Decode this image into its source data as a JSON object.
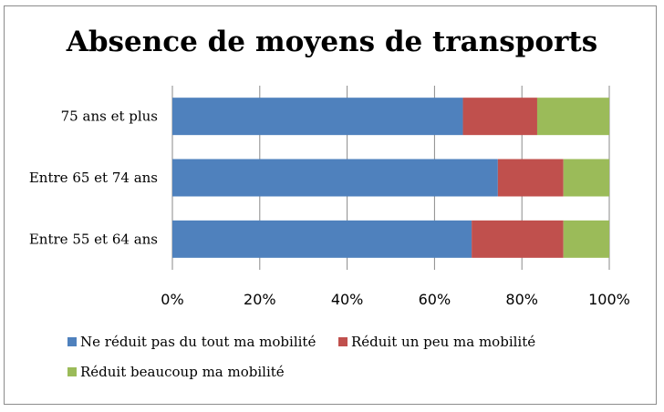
{
  "chart_data": {
    "type": "bar",
    "orientation": "horizontal",
    "stacked": "percent",
    "title": "Absence de moyens de transports",
    "categories": [
      "75 ans et plus",
      "Entre 65 et 74 ans",
      "Entre 55 et 64 ans"
    ],
    "series": [
      {
        "name": "Ne réduit pas du tout ma mobilité",
        "color": "#4f81bd",
        "values": [
          66.5,
          74.5,
          68.5
        ]
      },
      {
        "name": "Réduit un peu ma mobilité",
        "color": "#c0504d",
        "values": [
          17,
          15,
          21
        ]
      },
      {
        "name": "Réduit beaucoup ma mobilité",
        "color": "#9bbb59",
        "values": [
          16.5,
          10.5,
          10.5
        ]
      }
    ],
    "xlim": [
      0,
      100
    ],
    "xticks": [
      "0%",
      "20%",
      "40%",
      "60%",
      "80%",
      "100%"
    ],
    "grid": true,
    "legend_position": "bottom"
  }
}
